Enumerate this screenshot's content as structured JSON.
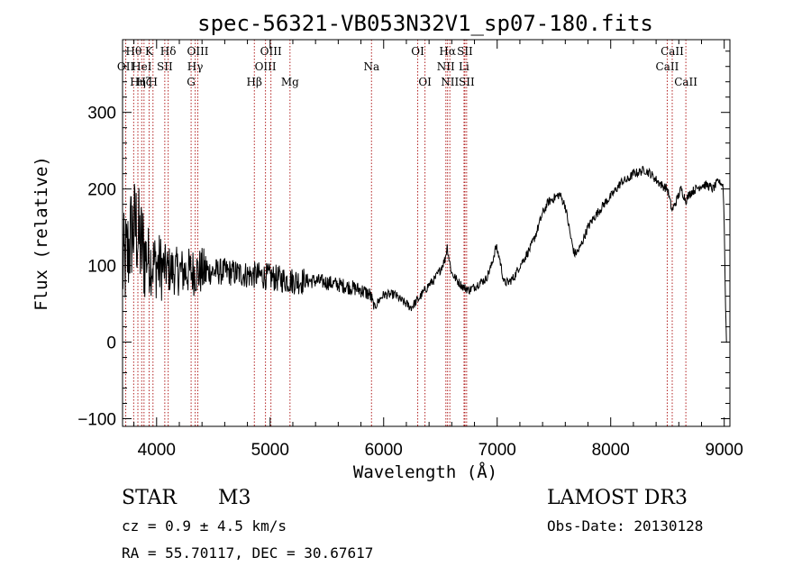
{
  "chart_data": {
    "type": "line",
    "title": "spec-56321-VB053N32V1_sp07-180.fits",
    "xlabel": "Wavelength (Å)",
    "ylabel": "Flux (relative)",
    "xlim": [
      3700,
      9050
    ],
    "ylim": [
      -110,
      395
    ],
    "xticks": [
      {
        "value": 4000,
        "label": "4000"
      },
      {
        "value": 5000,
        "label": "5000"
      },
      {
        "value": 6000,
        "label": "6000"
      },
      {
        "value": 7000,
        "label": "7000"
      },
      {
        "value": 8000,
        "label": "8000"
      },
      {
        "value": 9000,
        "label": "9000"
      }
    ],
    "yticks": [
      {
        "value": -100,
        "label": "−100"
      },
      {
        "value": 0,
        "label": "0"
      },
      {
        "value": 100,
        "label": "100"
      },
      {
        "value": 200,
        "label": "200"
      },
      {
        "value": 300,
        "label": "300"
      }
    ],
    "line_color": "#000000",
    "marker_color": "#b22222",
    "spectral_lines": [
      {
        "x": 3728,
        "label": "OII",
        "row": 2
      },
      {
        "x": 3798,
        "label": "Hθ",
        "row": 1
      },
      {
        "x": 3835,
        "label": "Hη",
        "row": 3
      },
      {
        "x": 3869,
        "label": "HeI",
        "row": 2
      },
      {
        "x": 3889,
        "label": "Hζ",
        "row": 3
      },
      {
        "x": 3934,
        "label": "K",
        "row": 1
      },
      {
        "x": 3968,
        "label": "H",
        "row": 3
      },
      {
        "x": 4072,
        "label": "SII",
        "row": 2
      },
      {
        "x": 4102,
        "label": "Hδ",
        "row": 1
      },
      {
        "x": 4304,
        "label": "G",
        "row": 3
      },
      {
        "x": 4340,
        "label": "Hγ",
        "row": 2
      },
      {
        "x": 4363,
        "label": "OIII",
        "row": 1
      },
      {
        "x": 4861,
        "label": "Hβ",
        "row": 3
      },
      {
        "x": 4959,
        "label": "OIII",
        "row": 2
      },
      {
        "x": 5007,
        "label": "OIII",
        "row": 1
      },
      {
        "x": 5175,
        "label": "Mg",
        "row": 3
      },
      {
        "x": 5893,
        "label": "Na",
        "row": 2
      },
      {
        "x": 6300,
        "label": "OI",
        "row": 1
      },
      {
        "x": 6364,
        "label": "OI",
        "row": 3
      },
      {
        "x": 6548,
        "label": "NII",
        "row": 2
      },
      {
        "x": 6563,
        "label": "Hα",
        "row": 1
      },
      {
        "x": 6583,
        "label": "NII",
        "row": 3
      },
      {
        "x": 6708,
        "label": "Li",
        "row": 2
      },
      {
        "x": 6716,
        "label": "SII",
        "row": 1
      },
      {
        "x": 6731,
        "label": "SII",
        "row": 3
      },
      {
        "x": 8498,
        "label": "CaII",
        "row": 2
      },
      {
        "x": 8542,
        "label": "CaII",
        "row": 1
      },
      {
        "x": 8662,
        "label": "CaII",
        "row": 3
      }
    ],
    "continuum": [
      [
        3700,
        95
      ],
      [
        3740,
        110
      ],
      [
        3780,
        145
      ],
      [
        3820,
        150
      ],
      [
        3860,
        125
      ],
      [
        3900,
        115
      ],
      [
        3950,
        105
      ],
      [
        4000,
        100
      ],
      [
        4100,
        95
      ],
      [
        4200,
        92
      ],
      [
        4300,
        92
      ],
      [
        4400,
        92
      ],
      [
        4500,
        92
      ],
      [
        4600,
        92
      ],
      [
        4700,
        90
      ],
      [
        4800,
        88
      ],
      [
        4900,
        87
      ],
      [
        5000,
        85
      ],
      [
        5100,
        82
      ],
      [
        5200,
        80
      ],
      [
        5300,
        80
      ],
      [
        5400,
        80
      ],
      [
        5500,
        78
      ],
      [
        5600,
        75
      ],
      [
        5700,
        72
      ],
      [
        5800,
        68
      ],
      [
        5880,
        62
      ],
      [
        5920,
        45
      ],
      [
        5960,
        55
      ],
      [
        6000,
        62
      ],
      [
        6100,
        62
      ],
      [
        6150,
        55
      ],
      [
        6200,
        50
      ],
      [
        6240,
        45
      ],
      [
        6300,
        55
      ],
      [
        6400,
        75
      ],
      [
        6450,
        82
      ],
      [
        6500,
        95
      ],
      [
        6540,
        108
      ],
      [
        6560,
        125
      ],
      [
        6575,
        110
      ],
      [
        6600,
        90
      ],
      [
        6650,
        80
      ],
      [
        6700,
        72
      ],
      [
        6750,
        68
      ],
      [
        6800,
        72
      ],
      [
        6850,
        78
      ],
      [
        6900,
        82
      ],
      [
        6950,
        100
      ],
      [
        6990,
        125
      ],
      [
        7020,
        110
      ],
      [
        7060,
        78
      ],
      [
        7100,
        78
      ],
      [
        7150,
        85
      ],
      [
        7200,
        100
      ],
      [
        7250,
        112
      ],
      [
        7300,
        125
      ],
      [
        7350,
        145
      ],
      [
        7400,
        168
      ],
      [
        7450,
        183
      ],
      [
        7500,
        188
      ],
      [
        7550,
        193
      ],
      [
        7600,
        178
      ],
      [
        7650,
        135
      ],
      [
        7680,
        115
      ],
      [
        7720,
        120
      ],
      [
        7760,
        135
      ],
      [
        7800,
        150
      ],
      [
        7850,
        162
      ],
      [
        7900,
        172
      ],
      [
        7950,
        182
      ],
      [
        8000,
        190
      ],
      [
        8050,
        200
      ],
      [
        8100,
        210
      ],
      [
        8150,
        212
      ],
      [
        8200,
        220
      ],
      [
        8250,
        222
      ],
      [
        8300,
        225
      ],
      [
        8350,
        220
      ],
      [
        8400,
        212
      ],
      [
        8450,
        205
      ],
      [
        8500,
        200
      ],
      [
        8540,
        172
      ],
      [
        8580,
        185
      ],
      [
        8620,
        200
      ],
      [
        8662,
        185
      ],
      [
        8700,
        195
      ],
      [
        8750,
        200
      ],
      [
        8800,
        205
      ],
      [
        8850,
        205
      ],
      [
        8900,
        200
      ],
      [
        8950,
        210
      ],
      [
        8990,
        205
      ],
      [
        9000,
        155
      ],
      [
        9010,
        60
      ],
      [
        9020,
        0
      ]
    ]
  },
  "info": {
    "object_class": "STAR",
    "subclass": "M3",
    "survey": "LAMOST DR3",
    "redshift_text": "cz = 0.9 ± 4.5 km/s",
    "obs_date_text": "Obs-Date: 20130128",
    "coords_text": "RA =  55.70117, DEC =  30.67617"
  }
}
